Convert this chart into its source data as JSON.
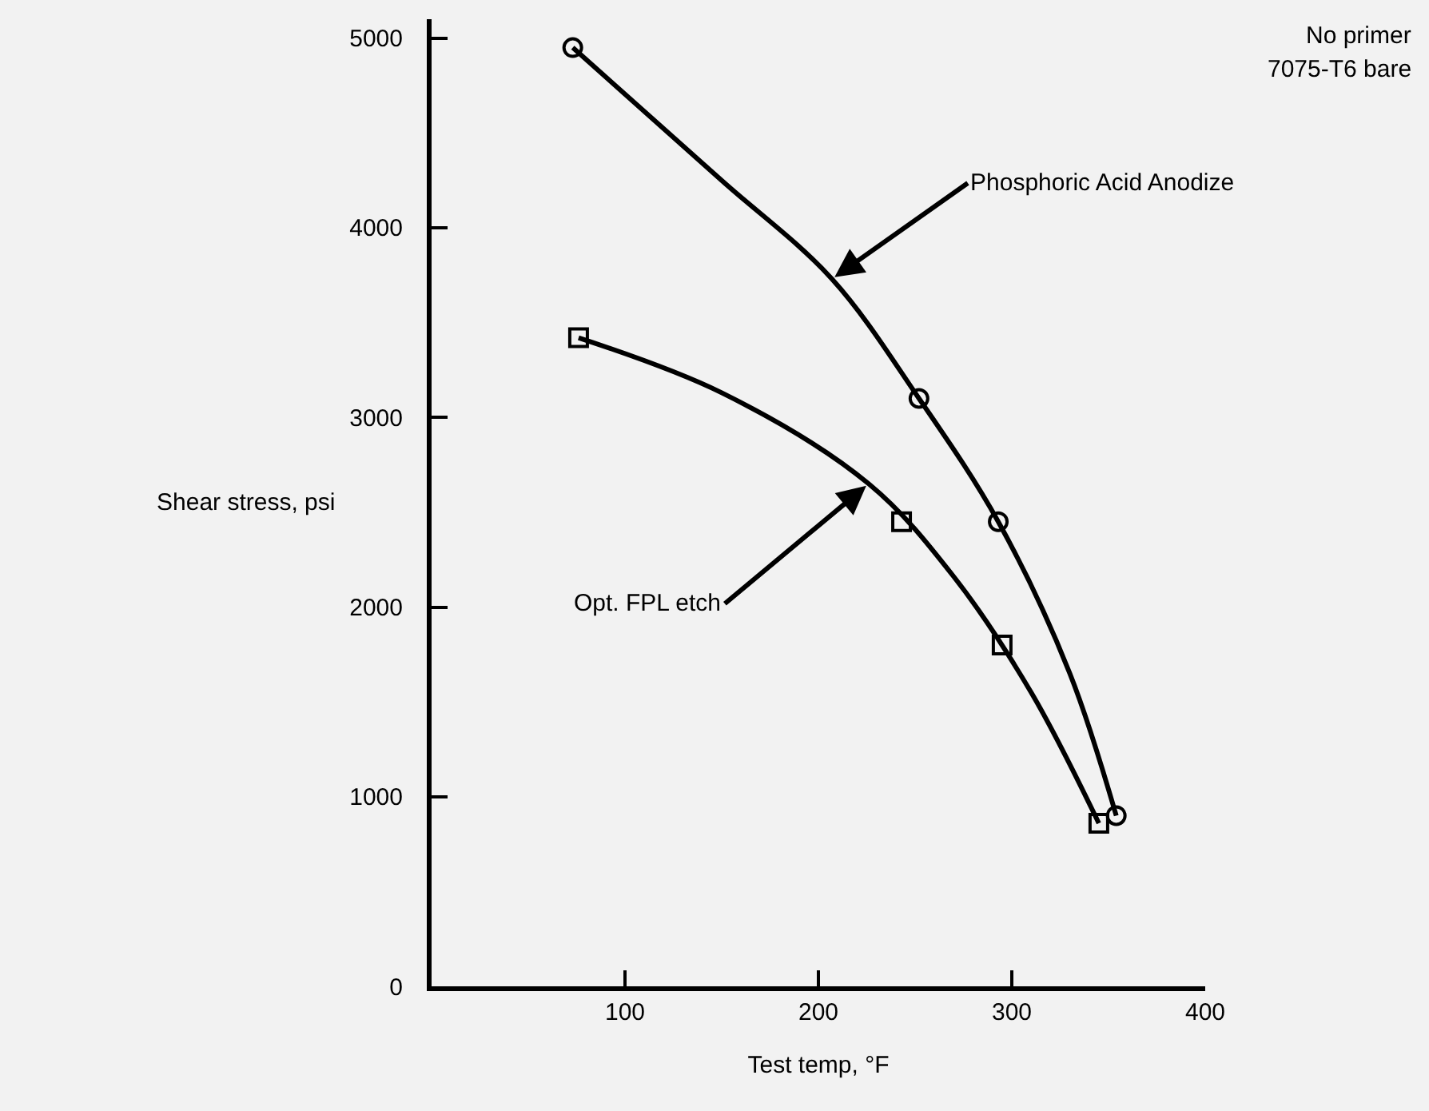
{
  "chart_data": {
    "type": "scatter",
    "xlabel": "Test temp, °F",
    "ylabel": "Shear stress, psi",
    "xlim": [
      0,
      400
    ],
    "xticks": [
      100,
      200,
      300,
      400
    ],
    "ylim": [
      0,
      5100
    ],
    "yticks": [
      0,
      1000,
      2000,
      3000,
      4000,
      5000
    ],
    "grid": false,
    "series": [
      {
        "marker": "circle",
        "color": "#000000",
        "x": [
          73,
          252,
          293,
          354
        ],
        "values": [
          4950,
          3100,
          2450,
          900
        ]
      },
      {
        "marker": "square",
        "color": "#000000",
        "x": [
          76,
          243,
          295,
          345
        ],
        "values": [
          3420,
          2450,
          1800,
          860
        ]
      },
      {
        "type": "line",
        "marker": "none",
        "line_style": "solid",
        "color": "#000000",
        "x": [
          73,
          150,
          207,
          252,
          293,
          330,
          354
        ],
        "values": [
          4950,
          4250,
          3730,
          3100,
          2450,
          1650,
          900
        ]
      },
      {
        "type": "line",
        "marker": "none",
        "line_style": "solid",
        "color": "#000000",
        "x": [
          76,
          150,
          226,
          270,
          310,
          345
        ],
        "values": [
          3420,
          3130,
          2650,
          2160,
          1550,
          860
        ]
      }
    ],
    "annotations": [
      "No primer",
      "7075-T6 bare",
      {
        "text": "Phosphoric Acid Anodize",
        "x": 207,
        "y": 3730
      },
      {
        "text": "Opt. FPL etch",
        "x": 226,
        "y": 2650
      }
    ]
  }
}
